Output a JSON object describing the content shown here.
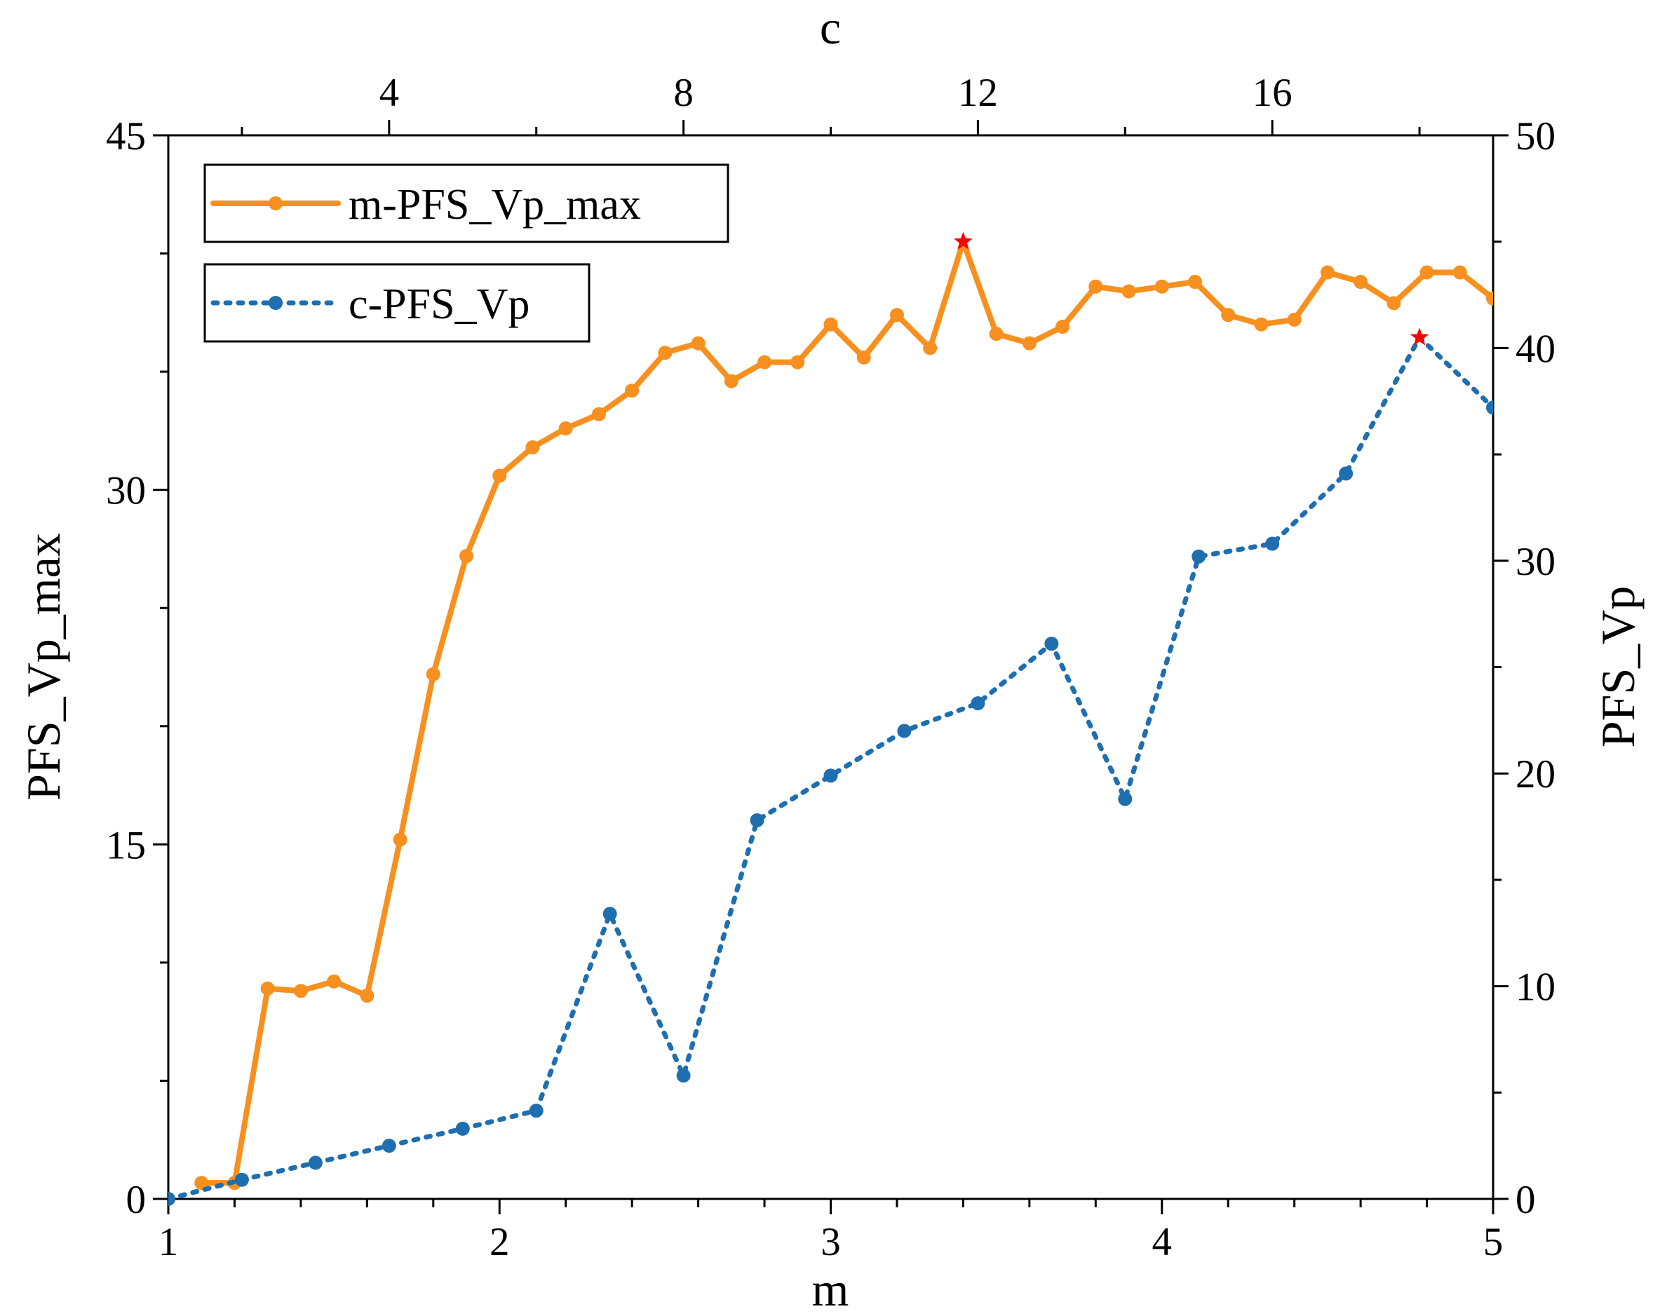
{
  "chart_data": {
    "type": "line",
    "xlabel": "m",
    "x2label": "c",
    "ylabel": "PFS_Vp_max",
    "y2label": "PFS_Vp",
    "xlim": [
      1,
      5
    ],
    "xticks": [
      1,
      2,
      3,
      4,
      5
    ],
    "xticks_minor": [
      1.2,
      1.4,
      1.6,
      1.8,
      2.2,
      2.4,
      2.6,
      2.8,
      3.2,
      3.4,
      3.6,
      3.8,
      4.2,
      4.4,
      4.6,
      4.8
    ],
    "x2lim": [
      1,
      19
    ],
    "x2ticks": [
      4,
      8,
      12,
      16
    ],
    "x2ticks_minor": [
      2,
      6,
      10,
      14,
      18
    ],
    "ylim": [
      0,
      45
    ],
    "yticks": [
      0,
      15,
      30,
      45
    ],
    "yticks_minor": [
      5,
      10,
      20,
      25,
      35,
      40
    ],
    "y2lim": [
      0,
      50
    ],
    "y2ticks": [
      0,
      10,
      20,
      30,
      40,
      50
    ],
    "y2ticks_minor": [
      5,
      15,
      25,
      35,
      45
    ],
    "legend": "upper left",
    "max_marker_color": "#ff0000",
    "series": [
      {
        "name": "m-PFS_Vp_max",
        "color": "#f7901e",
        "style": "solid",
        "x": [
          1.1,
          1.2,
          1.3,
          1.4,
          1.5,
          1.6,
          1.7,
          1.8,
          1.9,
          2.0,
          2.1,
          2.2,
          2.3,
          2.4,
          2.5,
          2.6,
          2.7,
          2.8,
          2.9,
          3.0,
          3.1,
          3.2,
          3.3,
          3.4,
          3.5,
          3.6,
          3.7,
          3.8,
          3.9,
          4.0,
          4.1,
          4.2,
          4.3,
          4.4,
          4.5,
          4.6,
          4.7,
          4.8,
          4.9,
          5.0
        ],
        "values": [
          0.68,
          0.68,
          8.9,
          8.8,
          9.2,
          8.6,
          15.2,
          22.2,
          27.2,
          30.6,
          31.8,
          32.6,
          33.2,
          34.2,
          35.8,
          36.2,
          34.6,
          35.4,
          35.4,
          37.0,
          35.6,
          37.4,
          36.0,
          40.5,
          36.6,
          36.2,
          36.9,
          38.6,
          38.4,
          38.6,
          38.8,
          37.4,
          37.0,
          37.2,
          39.2,
          38.8,
          37.9,
          39.2,
          39.2,
          38.1
        ]
      },
      {
        "name": "c-PFS_Vp",
        "color": "#1f6fb0",
        "style": "dotted",
        "axis": "y2",
        "xaxis": "x2",
        "x": [
          1,
          2,
          3,
          4,
          5,
          6,
          7,
          8,
          9,
          10,
          11,
          12,
          13,
          14,
          15,
          16,
          17,
          18,
          19
        ],
        "values": [
          0,
          0.9,
          1.7,
          2.5,
          3.3,
          4.15,
          13.4,
          5.8,
          17.8,
          19.9,
          22.0,
          23.3,
          26.1,
          18.8,
          30.2,
          30.8,
          34.1,
          40.5,
          37.2
        ]
      }
    ]
  }
}
